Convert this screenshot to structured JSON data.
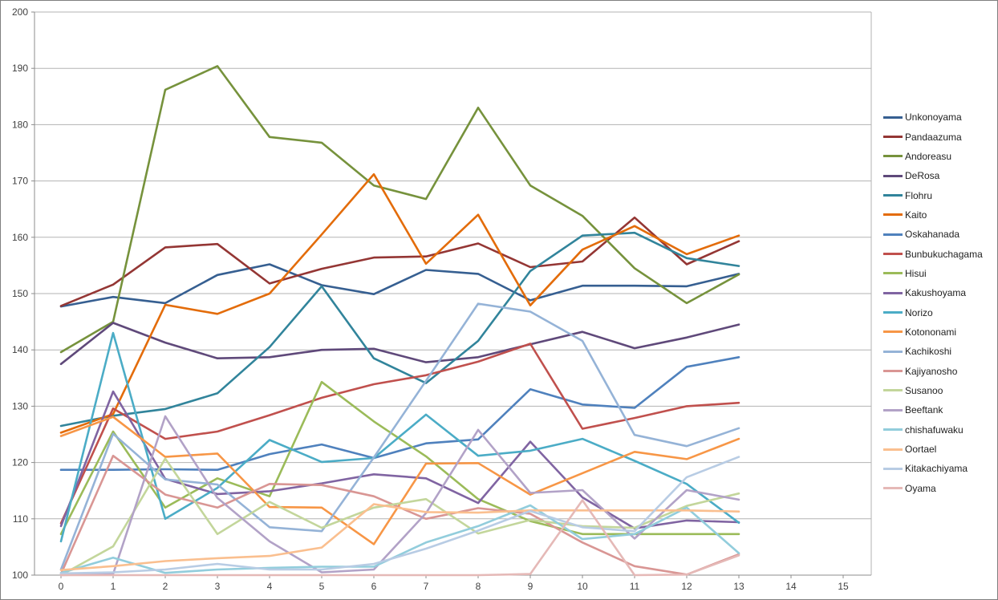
{
  "figure": {
    "background": "#ffffff",
    "outer_border_color": "#7f7f7f",
    "gridline_color": "#b3b3b3",
    "axis_color": "#8c8c8c",
    "tick_label_color": "#404040"
  },
  "chart_data": {
    "type": "line",
    "title": "",
    "xlabel": "",
    "ylabel": "",
    "grid": true,
    "legend_position": "right",
    "x": [
      0,
      1,
      2,
      3,
      4,
      5,
      6,
      7,
      8,
      9,
      10,
      11,
      12,
      13
    ],
    "x_axis": {
      "min": 0,
      "max": 15,
      "ticks": [
        "0",
        "1",
        "2",
        "3",
        "4",
        "5",
        "6",
        "7",
        "8",
        "9",
        "10",
        "11",
        "12",
        "13",
        "14",
        "15"
      ]
    },
    "y_axis": {
      "min": 100,
      "max": 200,
      "ticks": [
        "100",
        "110",
        "120",
        "130",
        "140",
        "150",
        "160",
        "170",
        "180",
        "190",
        "200"
      ]
    },
    "series": [
      {
        "name": "Unkonoyama",
        "color": "#365f91",
        "values": [
          147.7,
          149.4,
          148.3,
          153.3,
          155.2,
          151.5,
          149.9,
          154.2,
          153.5,
          148.8,
          151.4,
          151.4,
          151.3,
          153.5
        ]
      },
      {
        "name": "Pandaazuma",
        "color": "#943634",
        "values": [
          147.8,
          151.6,
          158.2,
          158.8,
          151.8,
          154.4,
          156.4,
          156.6,
          158.9,
          154.7,
          155.7,
          163.5,
          155.2,
          159.3
        ]
      },
      {
        "name": "Andoreasu",
        "color": "#76923c",
        "values": [
          139.6,
          145.0,
          186.2,
          190.4,
          177.8,
          176.8,
          169.2,
          166.8,
          183.0,
          169.2,
          163.8,
          154.5,
          148.3,
          153.4
        ]
      },
      {
        "name": "DeRosa",
        "color": "#5f497a",
        "values": [
          137.5,
          144.8,
          141.3,
          138.5,
          138.7,
          140.0,
          140.2,
          137.8,
          138.7,
          141.0,
          143.2,
          140.3,
          142.2,
          144.5
        ]
      },
      {
        "name": "Flohru",
        "color": "#31849b",
        "values": [
          126.5,
          128.3,
          129.5,
          132.3,
          140.5,
          151.3,
          138.5,
          134.1,
          141.6,
          154.0,
          160.3,
          160.8,
          156.3,
          154.9
        ]
      },
      {
        "name": "Kaito",
        "color": "#e36c0a",
        "values": [
          125.3,
          128.6,
          148.0,
          146.4,
          150.0,
          160.5,
          171.2,
          155.3,
          164.0,
          147.9,
          157.8,
          162.0,
          157.0,
          160.3
        ]
      },
      {
        "name": "Oskahanada",
        "color": "#4f81bd",
        "values": [
          118.7,
          118.7,
          118.8,
          118.7,
          121.5,
          123.2,
          120.8,
          123.4,
          124.1,
          133.0,
          130.3,
          129.7,
          137.0,
          138.7
        ]
      },
      {
        "name": "Bunbukuchagama",
        "color": "#c0504d",
        "values": [
          109.2,
          129.6,
          124.2,
          125.5,
          128.4,
          131.5,
          133.9,
          135.5,
          137.9,
          141.1,
          126.0,
          127.9,
          130.0,
          130.6
        ]
      },
      {
        "name": "Hisui",
        "color": "#9bbb59",
        "values": [
          107.3,
          125.5,
          112.0,
          117.2,
          114.0,
          134.3,
          127.3,
          121.1,
          113.5,
          109.6,
          107.3,
          107.3,
          107.3,
          107.3
        ]
      },
      {
        "name": "Kakushoyama",
        "color": "#8064a2",
        "values": [
          108.7,
          132.6,
          117.1,
          114.4,
          114.9,
          116.3,
          117.9,
          117.2,
          112.8,
          123.7,
          113.8,
          108.3,
          109.7,
          109.4
        ]
      },
      {
        "name": "Norizo",
        "color": "#4bacc6",
        "values": [
          106.0,
          143.0,
          110.0,
          115.5,
          124.0,
          120.1,
          120.8,
          128.5,
          121.2,
          122.1,
          124.2,
          120.3,
          116.2,
          109.3
        ]
      },
      {
        "name": "Kotononami",
        "color": "#f79646",
        "values": [
          124.7,
          128.1,
          121.0,
          121.6,
          112.1,
          112.0,
          105.5,
          119.8,
          119.9,
          114.3,
          118.1,
          121.9,
          120.6,
          124.2
        ]
      },
      {
        "name": "Kachikoshi",
        "color": "#95b3d7",
        "values": [
          101.0,
          125.1,
          117.0,
          116.1,
          108.5,
          107.8,
          120.9,
          134.5,
          148.2,
          146.8,
          141.6,
          124.9,
          122.9,
          126.1
        ]
      },
      {
        "name": "Kajiyanosho",
        "color": "#d99694",
        "values": [
          100.2,
          121.2,
          114.3,
          112.0,
          116.2,
          116.0,
          114.0,
          110.0,
          111.9,
          110.9,
          105.8,
          101.6,
          100.1,
          103.7
        ]
      },
      {
        "name": "Susanoo",
        "color": "#c3d69b",
        "values": [
          100.0,
          105.1,
          120.7,
          107.3,
          113.0,
          108.4,
          112.0,
          113.5,
          107.4,
          109.8,
          108.7,
          108.4,
          112.3,
          114.5
        ]
      },
      {
        "name": "Beeftank",
        "color": "#b2a2c7",
        "values": [
          100.0,
          100.2,
          128.2,
          113.7,
          106.0,
          100.5,
          101.0,
          111.0,
          125.8,
          114.6,
          115.1,
          106.5,
          115.1,
          113.4
        ]
      },
      {
        "name": "chishafuwaku",
        "color": "#92cddc",
        "values": [
          100.4,
          103.1,
          100.4,
          101.0,
          101.3,
          101.5,
          101.5,
          105.8,
          108.7,
          112.4,
          106.4,
          107.3,
          112.0,
          103.9
        ]
      },
      {
        "name": "Oortael",
        "color": "#fabf8f",
        "values": [
          100.9,
          101.6,
          102.5,
          103.0,
          103.4,
          104.9,
          112.6,
          111.2,
          111.1,
          111.5,
          111.5,
          111.5,
          111.5,
          111.3
        ]
      },
      {
        "name": "Kitakachiyama",
        "color": "#b8cce4",
        "values": [
          100.3,
          100.5,
          101.0,
          102.0,
          101.0,
          101.0,
          102.0,
          104.7,
          107.9,
          111.4,
          108.5,
          107.8,
          117.4,
          121.0
        ]
      },
      {
        "name": "Oyama",
        "color": "#e5b9b7",
        "values": [
          100.0,
          100.0,
          100.0,
          100.0,
          100.0,
          100.0,
          100.0,
          100.0,
          100.0,
          100.2,
          113.3,
          100.0,
          100.1,
          103.5
        ]
      }
    ]
  }
}
